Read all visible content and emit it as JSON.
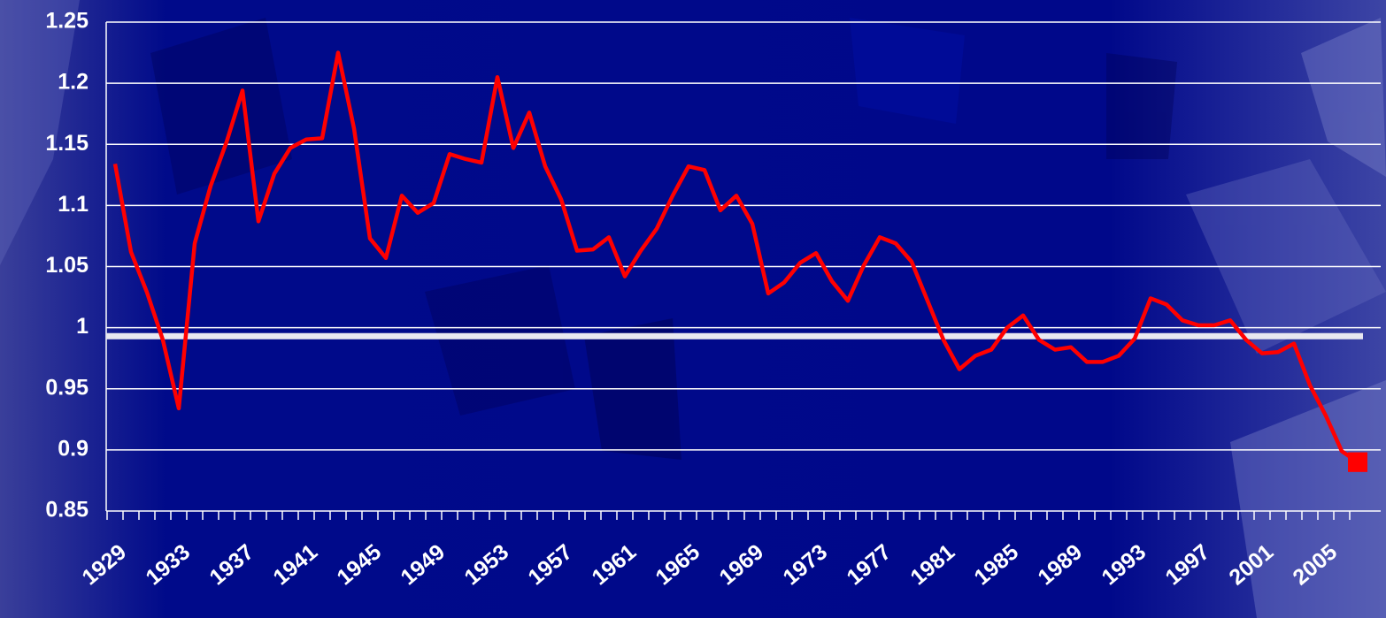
{
  "chart_data": {
    "type": "line",
    "categories": [
      "1929",
      null,
      null,
      null,
      "1933",
      null,
      null,
      null,
      "1937",
      null,
      null,
      null,
      "1941",
      null,
      null,
      null,
      "1945",
      null,
      null,
      null,
      "1949",
      null,
      null,
      null,
      "1953",
      null,
      null,
      null,
      "1957",
      null,
      null,
      null,
      "1961",
      null,
      null,
      null,
      "1965",
      null,
      null,
      null,
      "1969",
      null,
      null,
      null,
      "1973",
      null,
      null,
      null,
      "1977",
      null,
      null,
      null,
      "1981",
      null,
      null,
      null,
      "1985",
      null,
      null,
      null,
      "1989",
      null,
      null,
      null,
      "1993",
      null,
      null,
      null,
      "1997",
      null,
      null,
      null,
      "2001",
      null,
      null,
      null,
      "2005",
      null,
      null
    ],
    "series": [
      {
        "color": "#ff0000",
        "values": [
          1.134,
          1.062,
          1.029,
          0.99,
          0.934,
          1.069,
          1.116,
          1.152,
          1.194,
          1.087,
          1.126,
          1.147,
          1.154,
          1.155,
          1.225,
          1.163,
          1.073,
          1.057,
          1.108,
          1.094,
          1.102,
          1.142,
          1.138,
          1.135,
          1.205,
          1.147,
          1.176,
          1.132,
          1.105,
          1.063,
          1.064,
          1.074,
          1.042,
          1.063,
          1.081,
          1.108,
          1.132,
          1.129,
          1.096,
          1.108,
          1.085,
          1.028,
          1.037,
          1.053,
          1.061,
          1.038,
          1.022,
          1.051,
          1.074,
          1.069,
          1.054,
          1.022,
          0.99,
          0.966,
          0.977,
          0.982,
          1.0,
          1.01,
          0.99,
          0.982,
          0.984,
          0.972,
          0.972,
          0.977,
          0.991,
          1.024,
          1.019,
          1.006,
          1.002,
          1.002,
          1.006,
          0.99,
          0.979,
          0.98,
          0.987,
          0.953,
          0.928,
          0.899,
          0.89
        ]
      }
    ],
    "ylim": [
      0.85,
      1.25
    ],
    "yticks": [
      0.85,
      0.9,
      0.95,
      1,
      1.05,
      1.1,
      1.15,
      1.2,
      1.25
    ],
    "grid": true,
    "reference_line": 0.993,
    "reference_color": "#e8e8f0"
  }
}
